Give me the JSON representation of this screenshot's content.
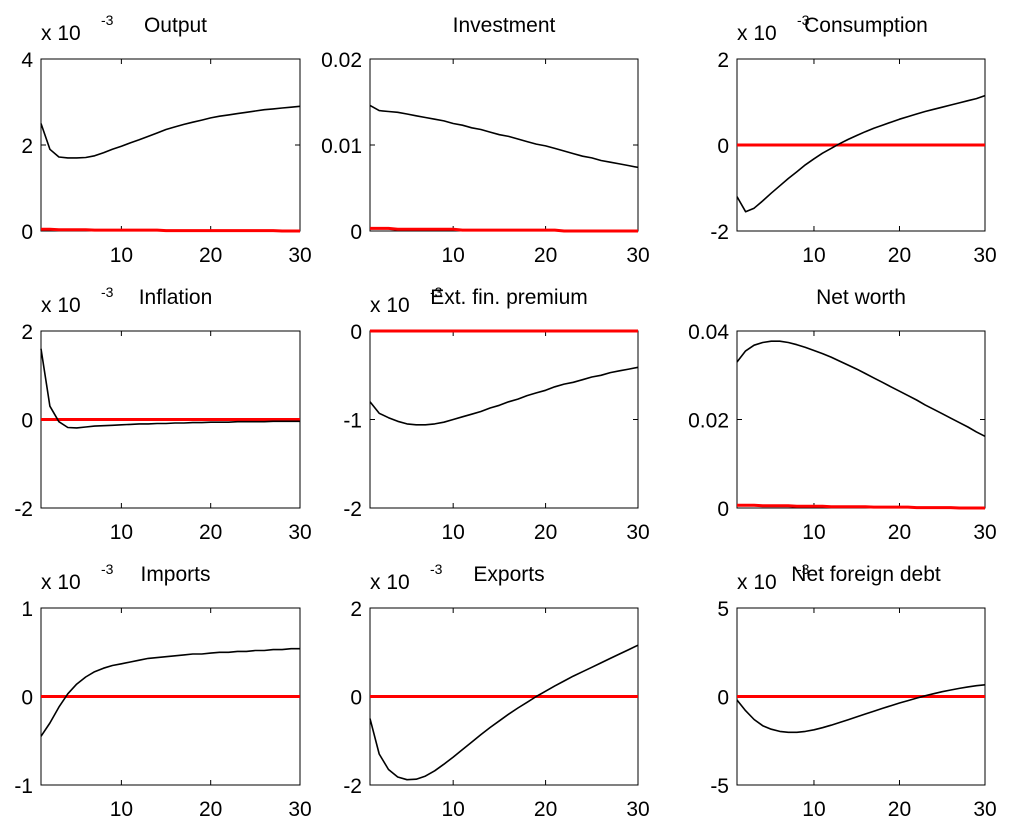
{
  "chart_data": [
    {
      "type": "line",
      "title": "Output",
      "multiplier": {
        "base": "x 10",
        "exponent": "-3"
      },
      "xlim": [
        1,
        30
      ],
      "ylim": [
        0,
        4
      ],
      "xticks": [
        "10",
        "20",
        "30"
      ],
      "yticks": [
        "0",
        "2",
        "4"
      ],
      "x": [
        1,
        2,
        3,
        4,
        5,
        6,
        7,
        8,
        9,
        10,
        11,
        12,
        13,
        14,
        15,
        16,
        17,
        18,
        19,
        20,
        21,
        22,
        23,
        24,
        25,
        26,
        27,
        28,
        29,
        30
      ],
      "series": [
        {
          "values": [
            2.5,
            1.9,
            1.72,
            1.7,
            1.7,
            1.71,
            1.75,
            1.82,
            1.9,
            1.97,
            2.05,
            2.12,
            2.2,
            2.28,
            2.36,
            2.42,
            2.48,
            2.53,
            2.58,
            2.63,
            2.67,
            2.7,
            2.73,
            2.76,
            2.79,
            2.82,
            2.84,
            2.86,
            2.88,
            2.9
          ]
        },
        {
          "values": [
            0.04,
            0.04,
            0.03,
            0.03,
            0.03,
            0.03,
            0.02,
            0.02,
            0.02,
            0.02,
            0.02,
            0.02,
            0.02,
            0.02,
            0.01,
            0.01,
            0.01,
            0.01,
            0.01,
            0.01,
            0.01,
            0.01,
            0.01,
            0.01,
            0.01,
            0.01,
            0.01,
            0.0,
            0.0,
            0.0
          ]
        }
      ]
    },
    {
      "type": "line",
      "title": "Investment",
      "multiplier": null,
      "xlim": [
        1,
        30
      ],
      "ylim": [
        0,
        0.02
      ],
      "xticks": [
        "10",
        "20",
        "30"
      ],
      "yticks": [
        "0",
        "0.01",
        "0.02"
      ],
      "x": [
        1,
        2,
        3,
        4,
        5,
        6,
        7,
        8,
        9,
        10,
        11,
        12,
        13,
        14,
        15,
        16,
        17,
        18,
        19,
        20,
        21,
        22,
        23,
        24,
        25,
        26,
        27,
        28,
        29,
        30
      ],
      "series": [
        {
          "values": [
            0.0146,
            0.014,
            0.0139,
            0.0138,
            0.0136,
            0.0134,
            0.0132,
            0.013,
            0.0128,
            0.0125,
            0.0123,
            0.012,
            0.0118,
            0.0115,
            0.0112,
            0.011,
            0.0107,
            0.0104,
            0.0101,
            0.0099,
            0.0096,
            0.0093,
            0.009,
            0.0087,
            0.0085,
            0.0082,
            0.008,
            0.0078,
            0.0076,
            0.0074
          ]
        },
        {
          "values": [
            0.0003,
            0.0003,
            0.0003,
            0.0002,
            0.0002,
            0.0002,
            0.0002,
            0.0002,
            0.0002,
            0.0002,
            0.0001,
            0.0001,
            0.0001,
            0.0001,
            0.0001,
            0.0001,
            0.0001,
            0.0001,
            0.0001,
            0.0001,
            0.0001,
            0.0,
            0.0,
            0.0,
            0.0,
            0.0,
            0.0,
            0.0,
            0.0,
            0.0
          ]
        }
      ]
    },
    {
      "type": "line",
      "title": "Consumption",
      "multiplier": {
        "base": "x 10",
        "exponent": "-3"
      },
      "xlim": [
        1,
        30
      ],
      "ylim": [
        -2,
        2
      ],
      "xticks": [
        "10",
        "20",
        "30"
      ],
      "yticks": [
        "-2",
        "0",
        "2"
      ],
      "x": [
        1,
        2,
        3,
        4,
        5,
        6,
        7,
        8,
        9,
        10,
        11,
        12,
        13,
        14,
        15,
        16,
        17,
        18,
        19,
        20,
        21,
        22,
        23,
        24,
        25,
        26,
        27,
        28,
        29,
        30
      ],
      "series": [
        {
          "values": [
            -1.2,
            -1.55,
            -1.47,
            -1.3,
            -1.12,
            -0.95,
            -0.78,
            -0.62,
            -0.46,
            -0.32,
            -0.19,
            -0.08,
            0.03,
            0.13,
            0.22,
            0.31,
            0.39,
            0.46,
            0.53,
            0.6,
            0.66,
            0.72,
            0.78,
            0.83,
            0.88,
            0.93,
            0.98,
            1.03,
            1.08,
            1.15
          ]
        },
        {
          "values": [
            0.0,
            0.0,
            0.0,
            0.0,
            0.0,
            0.0,
            0.0,
            0.0,
            0.0,
            0.0,
            0.0,
            0.0,
            0.0,
            0.0,
            0.0,
            0.0,
            0.0,
            0.0,
            0.0,
            0.0,
            0.0,
            0.0,
            0.0,
            0.0,
            0.0,
            0.0,
            0.0,
            0.0,
            0.0,
            0.0
          ]
        }
      ]
    },
    {
      "type": "line",
      "title": "Inflation",
      "multiplier": {
        "base": "x 10",
        "exponent": "-3"
      },
      "xlim": [
        1,
        30
      ],
      "ylim": [
        -2,
        2
      ],
      "xticks": [
        "10",
        "20",
        "30"
      ],
      "yticks": [
        "-2",
        "0",
        "2"
      ],
      "x": [
        1,
        2,
        3,
        4,
        5,
        6,
        7,
        8,
        9,
        10,
        11,
        12,
        13,
        14,
        15,
        16,
        17,
        18,
        19,
        20,
        21,
        22,
        23,
        24,
        25,
        26,
        27,
        28,
        29,
        30
      ],
      "series": [
        {
          "values": [
            1.6,
            0.3,
            -0.05,
            -0.18,
            -0.19,
            -0.17,
            -0.15,
            -0.14,
            -0.13,
            -0.12,
            -0.11,
            -0.1,
            -0.1,
            -0.09,
            -0.09,
            -0.08,
            -0.08,
            -0.07,
            -0.07,
            -0.06,
            -0.06,
            -0.06,
            -0.05,
            -0.05,
            -0.05,
            -0.05,
            -0.04,
            -0.04,
            -0.04,
            -0.04
          ]
        },
        {
          "values": [
            0.0,
            0.0,
            0.0,
            0.0,
            0.0,
            0.0,
            0.0,
            0.0,
            0.0,
            0.0,
            0.0,
            0.0,
            0.0,
            0.0,
            0.0,
            0.0,
            0.0,
            0.0,
            0.0,
            0.0,
            0.0,
            0.0,
            0.0,
            0.0,
            0.0,
            0.0,
            0.0,
            0.0,
            0.0,
            0.0
          ]
        }
      ]
    },
    {
      "type": "line",
      "title": "Ext. fin. premium",
      "multiplier": {
        "base": "x 10",
        "exponent": "-3"
      },
      "xlim": [
        1,
        30
      ],
      "ylim": [
        -2,
        0
      ],
      "xticks": [
        "10",
        "20",
        "30"
      ],
      "yticks": [
        "-2",
        "-1",
        "0"
      ],
      "x": [
        1,
        2,
        3,
        4,
        5,
        6,
        7,
        8,
        9,
        10,
        11,
        12,
        13,
        14,
        15,
        16,
        17,
        18,
        19,
        20,
        21,
        22,
        23,
        24,
        25,
        26,
        27,
        28,
        29,
        30
      ],
      "series": [
        {
          "values": [
            -0.8,
            -0.93,
            -0.98,
            -1.02,
            -1.05,
            -1.06,
            -1.06,
            -1.05,
            -1.03,
            -1.0,
            -0.97,
            -0.94,
            -0.91,
            -0.87,
            -0.84,
            -0.8,
            -0.77,
            -0.73,
            -0.7,
            -0.67,
            -0.63,
            -0.6,
            -0.58,
            -0.55,
            -0.52,
            -0.5,
            -0.47,
            -0.45,
            -0.43,
            -0.41
          ]
        },
        {
          "values": [
            0.0,
            0.0,
            0.0,
            0.0,
            0.0,
            0.0,
            0.0,
            0.0,
            0.0,
            0.0,
            0.0,
            0.0,
            0.0,
            0.0,
            0.0,
            0.0,
            0.0,
            0.0,
            0.0,
            0.0,
            0.0,
            0.0,
            0.0,
            0.0,
            0.0,
            0.0,
            0.0,
            0.0,
            0.0,
            0.0
          ]
        }
      ]
    },
    {
      "type": "line",
      "title": "Net worth",
      "multiplier": null,
      "xlim": [
        1,
        30
      ],
      "ylim": [
        0,
        0.04
      ],
      "xticks": [
        "10",
        "20",
        "30"
      ],
      "yticks": [
        "0",
        "0.02",
        "0.04"
      ],
      "x": [
        1,
        2,
        3,
        4,
        5,
        6,
        7,
        8,
        9,
        10,
        11,
        12,
        13,
        14,
        15,
        16,
        17,
        18,
        19,
        20,
        21,
        22,
        23,
        24,
        25,
        26,
        27,
        28,
        29,
        30
      ],
      "series": [
        {
          "values": [
            0.033,
            0.0355,
            0.0368,
            0.0374,
            0.0377,
            0.0377,
            0.0374,
            0.0369,
            0.0363,
            0.0356,
            0.0349,
            0.0341,
            0.0332,
            0.0323,
            0.0314,
            0.0304,
            0.0294,
            0.0284,
            0.0274,
            0.0264,
            0.0254,
            0.0244,
            0.0233,
            0.0223,
            0.0213,
            0.0203,
            0.0193,
            0.0183,
            0.0172,
            0.0162
          ]
        },
        {
          "values": [
            0.0006,
            0.0006,
            0.0006,
            0.0005,
            0.0005,
            0.0005,
            0.0005,
            0.0004,
            0.0004,
            0.0004,
            0.0004,
            0.0003,
            0.0003,
            0.0003,
            0.0003,
            0.0003,
            0.0002,
            0.0002,
            0.0002,
            0.0002,
            0.0002,
            0.0001,
            0.0001,
            0.0001,
            0.0001,
            0.0001,
            0.0,
            0.0,
            0.0,
            0.0
          ]
        }
      ]
    },
    {
      "type": "line",
      "title": "Imports",
      "multiplier": {
        "base": "x 10",
        "exponent": "-3"
      },
      "xlim": [
        1,
        30
      ],
      "ylim": [
        -1,
        1
      ],
      "xticks": [
        "10",
        "20",
        "30"
      ],
      "yticks": [
        "-1",
        "0",
        "1"
      ],
      "x": [
        1,
        2,
        3,
        4,
        5,
        6,
        7,
        8,
        9,
        10,
        11,
        12,
        13,
        14,
        15,
        16,
        17,
        18,
        19,
        20,
        21,
        22,
        23,
        24,
        25,
        26,
        27,
        28,
        29,
        30
      ],
      "series": [
        {
          "values": [
            -0.45,
            -0.3,
            -0.12,
            0.03,
            0.14,
            0.22,
            0.28,
            0.32,
            0.35,
            0.37,
            0.39,
            0.41,
            0.43,
            0.44,
            0.45,
            0.46,
            0.47,
            0.48,
            0.48,
            0.49,
            0.5,
            0.5,
            0.51,
            0.51,
            0.52,
            0.52,
            0.53,
            0.53,
            0.54,
            0.54
          ]
        },
        {
          "values": [
            0.0,
            0.0,
            0.0,
            0.0,
            0.0,
            0.0,
            0.0,
            0.0,
            0.0,
            0.0,
            0.0,
            0.0,
            0.0,
            0.0,
            0.0,
            0.0,
            0.0,
            0.0,
            0.0,
            0.0,
            0.0,
            0.0,
            0.0,
            0.0,
            0.0,
            0.0,
            0.0,
            0.0,
            0.0,
            0.0
          ]
        }
      ]
    },
    {
      "type": "line",
      "title": "Exports",
      "multiplier": {
        "base": "x 10",
        "exponent": "-3"
      },
      "xlim": [
        1,
        30
      ],
      "ylim": [
        -2,
        2
      ],
      "xticks": [
        "10",
        "20",
        "30"
      ],
      "yticks": [
        "-2",
        "0",
        "2"
      ],
      "x": [
        1,
        2,
        3,
        4,
        5,
        6,
        7,
        8,
        9,
        10,
        11,
        12,
        13,
        14,
        15,
        16,
        17,
        18,
        19,
        20,
        21,
        22,
        23,
        24,
        25,
        26,
        27,
        28,
        29,
        30
      ],
      "series": [
        {
          "values": [
            -0.5,
            -1.3,
            -1.65,
            -1.82,
            -1.88,
            -1.87,
            -1.8,
            -1.68,
            -1.53,
            -1.37,
            -1.2,
            -1.03,
            -0.86,
            -0.7,
            -0.55,
            -0.4,
            -0.26,
            -0.13,
            0.0,
            0.12,
            0.24,
            0.35,
            0.46,
            0.56,
            0.66,
            0.76,
            0.86,
            0.96,
            1.06,
            1.16
          ]
        },
        {
          "values": [
            0.0,
            0.0,
            0.0,
            0.0,
            0.0,
            0.0,
            0.0,
            0.0,
            0.0,
            0.0,
            0.0,
            0.0,
            0.0,
            0.0,
            0.0,
            0.0,
            0.0,
            0.0,
            0.0,
            0.0,
            0.0,
            0.0,
            0.0,
            0.0,
            0.0,
            0.0,
            0.0,
            0.0,
            0.0,
            0.0
          ]
        }
      ]
    },
    {
      "type": "line",
      "title": "Net foreign debt",
      "multiplier": {
        "base": "x 10",
        "exponent": "-3"
      },
      "xlim": [
        1,
        30
      ],
      "ylim": [
        -5,
        5
      ],
      "xticks": [
        "10",
        "20",
        "30"
      ],
      "yticks": [
        "-5",
        "0",
        "5"
      ],
      "x": [
        1,
        2,
        3,
        4,
        5,
        6,
        7,
        8,
        9,
        10,
        11,
        12,
        13,
        14,
        15,
        16,
        17,
        18,
        19,
        20,
        21,
        22,
        23,
        24,
        25,
        26,
        27,
        28,
        29,
        30
      ],
      "series": [
        {
          "values": [
            -0.2,
            -0.8,
            -1.3,
            -1.65,
            -1.85,
            -1.97,
            -2.02,
            -2.02,
            -1.97,
            -1.88,
            -1.76,
            -1.62,
            -1.47,
            -1.31,
            -1.15,
            -0.99,
            -0.83,
            -0.67,
            -0.52,
            -0.37,
            -0.23,
            -0.09,
            0.04,
            0.16,
            0.27,
            0.37,
            0.46,
            0.54,
            0.61,
            0.66
          ]
        },
        {
          "values": [
            0.0,
            0.0,
            0.0,
            0.0,
            0.0,
            0.0,
            0.0,
            0.0,
            0.0,
            0.0,
            0.0,
            0.0,
            0.0,
            0.0,
            0.0,
            0.0,
            0.0,
            0.0,
            0.0,
            0.0,
            0.0,
            0.0,
            0.0,
            0.0,
            0.0,
            0.0,
            0.0,
            0.0,
            0.0,
            0.0
          ]
        }
      ]
    }
  ],
  "colors": {
    "response": "#000000",
    "baseline": "#ff0000",
    "axes": "#000000"
  }
}
